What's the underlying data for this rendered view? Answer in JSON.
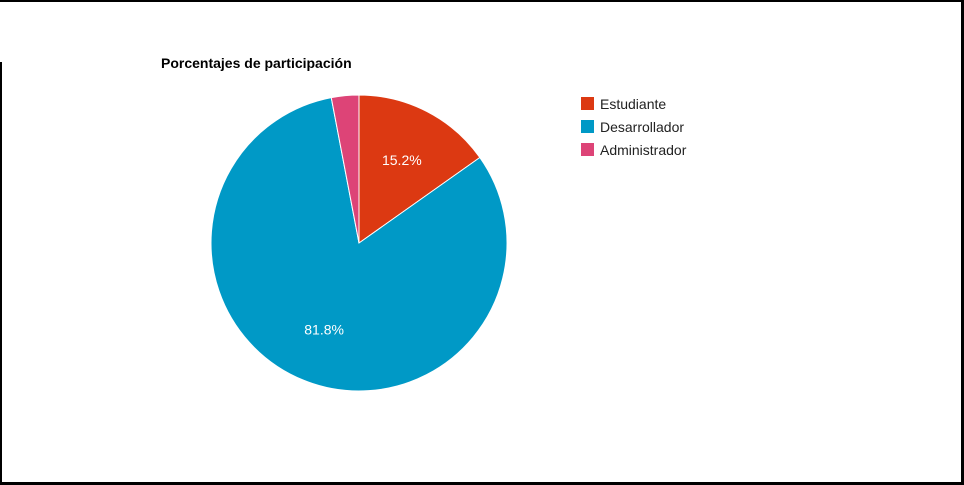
{
  "chart_data": {
    "type": "pie",
    "title": "Porcentajes de participación",
    "slices": [
      {
        "label": "Estudiante",
        "value": 15.2,
        "color": "#dc3912",
        "value_label": "15.2%"
      },
      {
        "label": "Desarrollador",
        "value": 81.8,
        "color": "#0099c6",
        "value_label": "81.8%"
      },
      {
        "label": "Administrador",
        "value": 3.0,
        "color": "#dd4477",
        "value_label": ""
      }
    ],
    "legend_position": "right"
  }
}
